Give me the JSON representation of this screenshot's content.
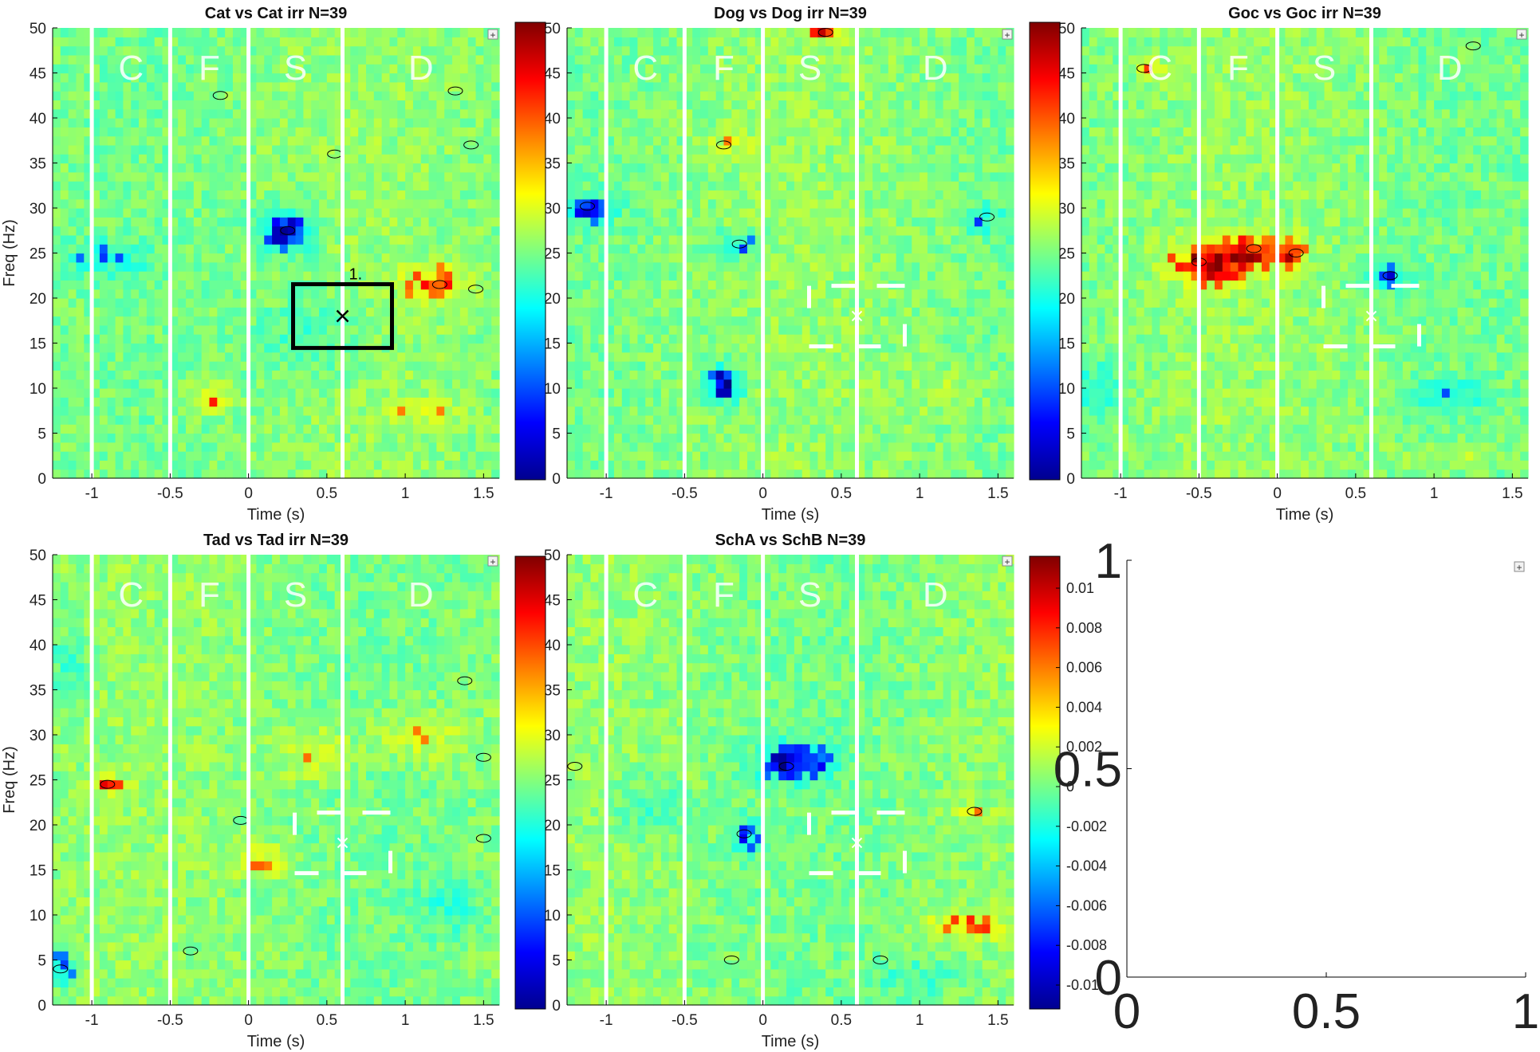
{
  "figure": {
    "colorbar_ticks": [
      "0.01",
      "0.008",
      "0.006",
      "0.004",
      "0.002",
      "0",
      "-0.002",
      "-0.004",
      "-0.006",
      "-0.008",
      "-0.01"
    ],
    "empty_axes_xticks": [
      "0",
      "0.5",
      "1"
    ],
    "empty_axes_yticks": [
      "0",
      "0.5",
      "1"
    ],
    "expand_button": "+",
    "marker_label": "1."
  },
  "chart_data": [
    {
      "type": "heatmap",
      "title": "Cat vs Cat irr N=39",
      "xlabel": "Time (s)",
      "ylabel": "Freq (Hz)",
      "xlim": [
        -1.25,
        1.6
      ],
      "ylim": [
        0,
        50
      ],
      "xticks": [
        -1,
        -0.5,
        0,
        0.5,
        1,
        1.5
      ],
      "yticks": [
        0,
        5,
        10,
        15,
        20,
        25,
        30,
        35,
        40,
        45,
        50
      ],
      "phase_lines": [
        -1,
        -0.5,
        0,
        0.6
      ],
      "phase_labels": [
        {
          "text": "C",
          "x": -0.75
        },
        {
          "text": "F",
          "x": -0.25
        },
        {
          "text": "S",
          "x": 0.3
        },
        {
          "text": "D",
          "x": 1.1
        }
      ],
      "color_scale": [
        -0.01,
        0.01
      ],
      "blobs": [
        {
          "t": 0.25,
          "f": 27.5,
          "v": -0.01,
          "rt": 0.18,
          "rf": 2.5
        },
        {
          "t": -0.25,
          "f": 9,
          "v": 0.006,
          "rt": 0.12,
          "rf": 1.5
        },
        {
          "t": 1.2,
          "f": 21.5,
          "v": 0.007,
          "rt": 0.2,
          "rf": 2
        },
        {
          "t": 1.1,
          "f": 7.5,
          "v": 0.004,
          "rt": 0.2,
          "rf": 1.5
        },
        {
          "t": -0.9,
          "f": 24.5,
          "v": -0.004,
          "rt": 0.3,
          "rf": 2
        },
        {
          "t": 0.4,
          "f": 16,
          "v": -0.003,
          "rt": 0.35,
          "rf": 5
        }
      ],
      "significant_clusters": [
        {
          "t": 0.25,
          "f": 27.5
        },
        {
          "t": 1.22,
          "f": 21.5
        },
        {
          "t": 1.45,
          "f": 21
        },
        {
          "t": 1.32,
          "f": 43
        },
        {
          "t": 1.42,
          "f": 37
        },
        {
          "t": -0.18,
          "f": 42.5
        },
        {
          "t": 0.55,
          "f": 36
        }
      ],
      "marker": {
        "t": 0.6,
        "f": 18,
        "style": "box"
      }
    },
    {
      "type": "heatmap",
      "title": "Dog vs Dog irr N=39",
      "xlabel": "Time (s)",
      "ylabel": "Freq (Hz)",
      "xlim": [
        -1.25,
        1.6
      ],
      "ylim": [
        0,
        50
      ],
      "xticks": [
        -1,
        -0.5,
        0,
        0.5,
        1,
        1.5
      ],
      "yticks": [
        0,
        5,
        10,
        15,
        20,
        25,
        30,
        35,
        40,
        45,
        50
      ],
      "phase_lines": [
        -1,
        -0.5,
        0,
        0.6
      ],
      "phase_labels": [
        {
          "text": "C",
          "x": -0.75
        },
        {
          "text": "F",
          "x": -0.25
        },
        {
          "text": "S",
          "x": 0.3
        },
        {
          "text": "D",
          "x": 1.1
        }
      ],
      "color_scale": [
        -0.01,
        0.01
      ],
      "blobs": [
        {
          "t": -0.25,
          "f": 10.5,
          "v": -0.01,
          "rt": 0.12,
          "rf": 2
        },
        {
          "t": -1.1,
          "f": 30,
          "v": -0.008,
          "rt": 0.15,
          "rf": 1.5
        },
        {
          "t": -0.15,
          "f": 26,
          "v": -0.006,
          "rt": 0.15,
          "rf": 1.5
        },
        {
          "t": 0.4,
          "f": 49.5,
          "v": 0.006,
          "rt": 0.15,
          "rf": 1
        },
        {
          "t": 1.4,
          "f": 29,
          "v": -0.005,
          "rt": 0.12,
          "rf": 1.5
        },
        {
          "t": -0.2,
          "f": 37,
          "v": 0.003,
          "rt": 0.15,
          "rf": 1.5
        },
        {
          "t": 1.2,
          "f": 10,
          "v": 0.002,
          "rt": 0.3,
          "rf": 3
        }
      ],
      "significant_clusters": [
        {
          "t": -1.12,
          "f": 30.2
        },
        {
          "t": -0.15,
          "f": 26
        },
        {
          "t": 0.4,
          "f": 49.5
        },
        {
          "t": 1.43,
          "f": 29
        },
        {
          "t": -0.25,
          "f": 37
        }
      ],
      "marker": {
        "t": 0.6,
        "f": 18,
        "style": "dashed"
      }
    },
    {
      "type": "heatmap",
      "title": "Goc vs Goc irr N=39",
      "xlabel": "Time (s)",
      "ylabel": "Freq (Hz)",
      "xlim": [
        -1.25,
        1.6
      ],
      "ylim": [
        0,
        50
      ],
      "xticks": [
        -1,
        -0.5,
        0,
        0.5,
        1,
        1.5
      ],
      "yticks": [
        0,
        5,
        10,
        15,
        20,
        25,
        30,
        35,
        40,
        45,
        50
      ],
      "phase_lines": [
        -1,
        -0.5,
        0,
        0.6
      ],
      "phase_labels": [
        {
          "text": "C",
          "x": -0.75
        },
        {
          "text": "F",
          "x": -0.25
        },
        {
          "text": "S",
          "x": 0.3
        },
        {
          "text": "D",
          "x": 1.1
        }
      ],
      "color_scale": [
        -0.01,
        0.01
      ],
      "blobs": [
        {
          "t": -0.45,
          "f": 24,
          "v": 0.008,
          "rt": 0.25,
          "rf": 2.5
        },
        {
          "t": -0.15,
          "f": 25,
          "v": 0.006,
          "rt": 0.2,
          "rf": 2
        },
        {
          "t": 0.1,
          "f": 25,
          "v": 0.007,
          "rt": 0.08,
          "rf": 1.5
        },
        {
          "t": 0.7,
          "f": 22.5,
          "v": -0.007,
          "rt": 0.15,
          "rf": 1.5
        },
        {
          "t": -1.15,
          "f": 10,
          "v": -0.004,
          "rt": 0.15,
          "rf": 3
        },
        {
          "t": 1.1,
          "f": 9,
          "v": -0.004,
          "rt": 0.25,
          "rf": 2
        },
        {
          "t": 1.1,
          "f": 2.5,
          "v": 0.003,
          "rt": 0.3,
          "rf": 1.5
        },
        {
          "t": -0.8,
          "f": 45.5,
          "v": 0.006,
          "rt": 0.1,
          "rf": 1
        }
      ],
      "significant_clusters": [
        {
          "t": -0.5,
          "f": 24
        },
        {
          "t": -0.15,
          "f": 25.5
        },
        {
          "t": 0.12,
          "f": 25
        },
        {
          "t": 0.72,
          "f": 22.5
        },
        {
          "t": -0.85,
          "f": 45.5
        },
        {
          "t": 1.25,
          "f": 48
        }
      ],
      "marker": {
        "t": 0.6,
        "f": 18,
        "style": "dashed"
      }
    },
    {
      "type": "heatmap",
      "title": "Tad vs Tad irr N=39",
      "xlabel": "Time (s)",
      "ylabel": "Freq (Hz)",
      "xlim": [
        -1.25,
        1.6
      ],
      "ylim": [
        0,
        50
      ],
      "xticks": [
        -1,
        -0.5,
        0,
        0.5,
        1,
        1.5
      ],
      "yticks": [
        0,
        5,
        10,
        15,
        20,
        25,
        30,
        35,
        40,
        45,
        50
      ],
      "phase_lines": [
        -1,
        -0.5,
        0,
        0.6
      ],
      "phase_labels": [
        {
          "text": "C",
          "x": -0.75
        },
        {
          "text": "F",
          "x": -0.25
        },
        {
          "text": "S",
          "x": 0.3
        },
        {
          "text": "D",
          "x": 1.1
        }
      ],
      "color_scale": [
        -0.01,
        0.01
      ],
      "blobs": [
        {
          "t": -0.9,
          "f": 24.5,
          "v": 0.007,
          "rt": 0.12,
          "rf": 1
        },
        {
          "t": -1.2,
          "f": 4,
          "v": -0.007,
          "rt": 0.1,
          "rf": 2
        },
        {
          "t": 0.4,
          "f": 28,
          "v": 0.004,
          "rt": 0.25,
          "rf": 3
        },
        {
          "t": 1.1,
          "f": 30,
          "v": 0.004,
          "rt": 0.3,
          "rf": 3
        },
        {
          "t": 0.1,
          "f": 16,
          "v": 0.004,
          "rt": 0.2,
          "rf": 2
        },
        {
          "t": -1.15,
          "f": 38,
          "v": -0.003,
          "rt": 0.15,
          "rf": 4
        },
        {
          "t": 1.3,
          "f": 11,
          "v": -0.003,
          "rt": 0.2,
          "rf": 3
        }
      ],
      "significant_clusters": [
        {
          "t": -0.9,
          "f": 24.5
        },
        {
          "t": -1.2,
          "f": 4
        },
        {
          "t": -0.05,
          "f": 20.5
        },
        {
          "t": -0.37,
          "f": 6
        },
        {
          "t": 1.5,
          "f": 27.5
        },
        {
          "t": 1.5,
          "f": 18.5
        },
        {
          "t": 1.38,
          "f": 36
        }
      ],
      "marker": {
        "t": 0.6,
        "f": 18,
        "style": "dashed"
      }
    },
    {
      "type": "heatmap",
      "title": "SchA vs SchB N=39",
      "xlabel": "Time (s)",
      "ylabel": "Freq (Hz)",
      "xlim": [
        -1.25,
        1.6
      ],
      "ylim": [
        0,
        50
      ],
      "xticks": [
        -1,
        -0.5,
        0,
        0.5,
        1,
        1.5
      ],
      "yticks": [
        0,
        5,
        10,
        15,
        20,
        25,
        30,
        35,
        40,
        45,
        50
      ],
      "phase_lines": [
        -1,
        -0.5,
        0,
        0.6
      ],
      "phase_labels": [
        {
          "text": "C",
          "x": -0.75
        },
        {
          "text": "F",
          "x": -0.25
        },
        {
          "text": "S",
          "x": 0.3
        },
        {
          "text": "D",
          "x": 1.1
        }
      ],
      "color_scale": [
        -0.01,
        0.01
      ],
      "blobs": [
        {
          "t": 0.2,
          "f": 27,
          "v": -0.009,
          "rt": 0.25,
          "rf": 2
        },
        {
          "t": -0.1,
          "f": 19,
          "v": -0.006,
          "rt": 0.12,
          "rf": 2
        },
        {
          "t": -0.75,
          "f": 22,
          "v": -0.003,
          "rt": 0.25,
          "rf": 3
        },
        {
          "t": 1.3,
          "f": 9,
          "v": 0.005,
          "rt": 0.3,
          "rf": 1.5
        },
        {
          "t": 1.3,
          "f": 21.5,
          "v": 0.005,
          "rt": 0.12,
          "rf": 1
        },
        {
          "t": 1,
          "f": 3,
          "v": -0.003,
          "rt": 0.3,
          "rf": 2
        }
      ],
      "significant_clusters": [
        {
          "t": 0.15,
          "f": 26.5
        },
        {
          "t": -0.12,
          "f": 19
        },
        {
          "t": 1.35,
          "f": 21.5
        },
        {
          "t": -1.2,
          "f": 26.5
        },
        {
          "t": -0.2,
          "f": 5
        },
        {
          "t": 0.75,
          "f": 5
        }
      ],
      "marker": {
        "t": 0.6,
        "f": 18,
        "style": "dashed"
      }
    }
  ]
}
